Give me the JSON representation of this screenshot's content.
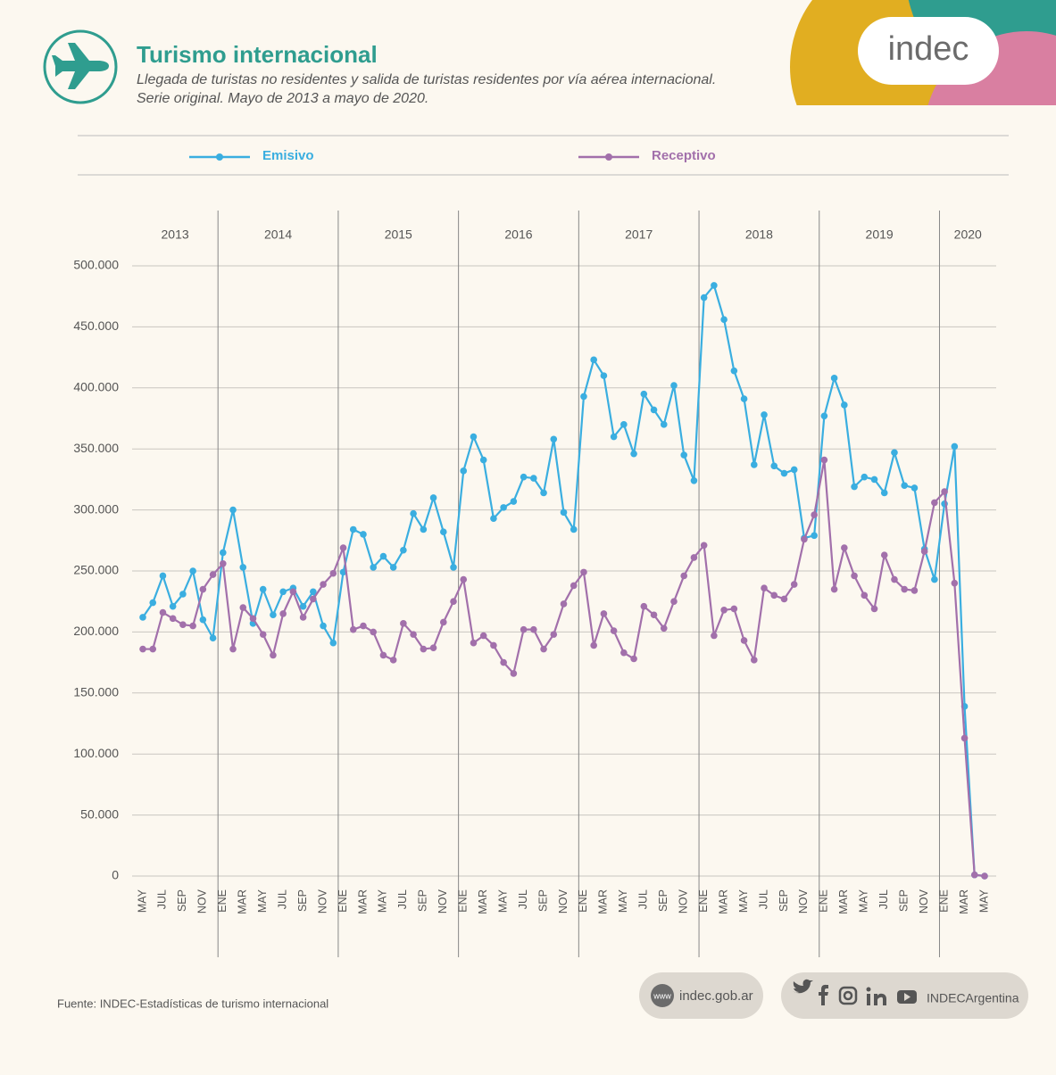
{
  "header": {
    "title": "Turismo internacional",
    "subtitle_lines": [
      "Llegada de turistas no residentes y salida de turistas residentes por vía aérea internacional.",
      "Serie original. Mayo de 2013 a mayo de 2020."
    ],
    "logo": "indec"
  },
  "chart_data": {
    "type": "line",
    "year_groups": [
      {
        "year": "2013",
        "categories": [
          "MAY",
          null,
          "JUL",
          null,
          "SEP",
          null,
          "NOV",
          null
        ]
      },
      {
        "year": "2014",
        "categories": [
          "ENE",
          null,
          "MAR",
          null,
          "MAY",
          null,
          "JUL",
          null,
          "SEP",
          null,
          "NOV",
          null
        ]
      },
      {
        "year": "2015",
        "categories": [
          "ENE",
          null,
          "MAR",
          null,
          "MAY",
          null,
          "JUL",
          null,
          "SEP",
          null,
          "NOV",
          null
        ]
      },
      {
        "year": "2016",
        "categories": [
          "ENE",
          null,
          "MAR",
          null,
          "MAY",
          null,
          "JUL",
          null,
          "SEP",
          null,
          "NOV",
          null
        ]
      },
      {
        "year": "2017",
        "categories": [
          "ENE",
          null,
          "MAR",
          null,
          "MAY",
          null,
          "JUL",
          null,
          "SEP",
          null,
          "NOV",
          null
        ]
      },
      {
        "year": "2018",
        "categories": [
          "ENE",
          null,
          "MAR",
          null,
          "MAY",
          null,
          "JUL",
          null,
          "SEP",
          null,
          "NOV",
          null
        ]
      },
      {
        "year": "2019",
        "categories": [
          "ENE",
          null,
          "MAR",
          null,
          "MAY",
          null,
          "JUL",
          null,
          "SEP",
          null,
          "NOV",
          null
        ]
      },
      {
        "year": "2020",
        "categories": [
          "ENE",
          null,
          "MAR",
          null,
          "MAY"
        ]
      }
    ],
    "series": [
      {
        "name": "Emisivo",
        "color": "#3aaee0",
        "values": [
          212000,
          224000,
          246000,
          221000,
          231000,
          250000,
          210000,
          195000,
          265000,
          300000,
          253000,
          207000,
          235000,
          214000,
          233000,
          236000,
          221000,
          233000,
          205000,
          191000,
          249000,
          284000,
          280000,
          253000,
          262000,
          253000,
          267000,
          297000,
          284000,
          310000,
          282000,
          253000,
          332000,
          360000,
          341000,
          293000,
          302000,
          307000,
          327000,
          326000,
          314000,
          358000,
          298000,
          284000,
          393000,
          423000,
          410000,
          360000,
          370000,
          346000,
          395000,
          382000,
          370000,
          402000,
          345000,
          324000,
          474000,
          484000,
          456000,
          414000,
          391000,
          337000,
          378000,
          336000,
          330000,
          333000,
          277000,
          279000,
          377000,
          408000,
          386000,
          319000,
          327000,
          325000,
          314000,
          347000,
          320000,
          318000,
          268000,
          243000,
          305000,
          352000,
          139000,
          1000,
          0
        ]
      },
      {
        "name": "Receptivo",
        "color": "#a270ab",
        "values": [
          186000,
          186000,
          216000,
          211000,
          206000,
          205000,
          235000,
          247000,
          256000,
          186000,
          220000,
          211000,
          198000,
          181000,
          215000,
          233000,
          212000,
          227000,
          239000,
          248000,
          269000,
          202000,
          205000,
          200000,
          181000,
          177000,
          207000,
          198000,
          186000,
          187000,
          208000,
          225000,
          243000,
          191000,
          197000,
          189000,
          175000,
          166000,
          202000,
          202000,
          186000,
          198000,
          223000,
          238000,
          249000,
          189000,
          215000,
          201000,
          183000,
          178000,
          221000,
          214000,
          203000,
          225000,
          246000,
          261000,
          271000,
          197000,
          218000,
          219000,
          193000,
          177000,
          236000,
          230000,
          227000,
          239000,
          276000,
          296000,
          341000,
          235000,
          269000,
          246000,
          230000,
          219000,
          263000,
          243000,
          235000,
          234000,
          266000,
          306000,
          315000,
          240000,
          113000,
          1000,
          0
        ]
      }
    ],
    "ylim": [
      0,
      500000
    ],
    "yticks": [
      0,
      {
        "value": 50000,
        "label": "50.000"
      },
      {
        "value": 100000,
        "label": "100.000"
      },
      {
        "value": 150000,
        "label": "150.000"
      },
      {
        "value": 200000,
        "label": "200.000"
      },
      {
        "value": 250000,
        "label": "250.000"
      },
      {
        "value": 300000,
        "label": "300.000"
      },
      {
        "value": 350000,
        "label": "350.000"
      },
      {
        "value": 400000,
        "label": "400.000"
      },
      {
        "value": 450000,
        "label": "450.000"
      },
      {
        "value": 500000,
        "label": "500.000"
      }
    ],
    "grid": true
  },
  "footer": {
    "source": "Fuente: INDEC-Estadísticas de turismo internacional",
    "web_badge": "www",
    "website": "indec.gob.ar",
    "social_handle": "INDECArgentina"
  }
}
